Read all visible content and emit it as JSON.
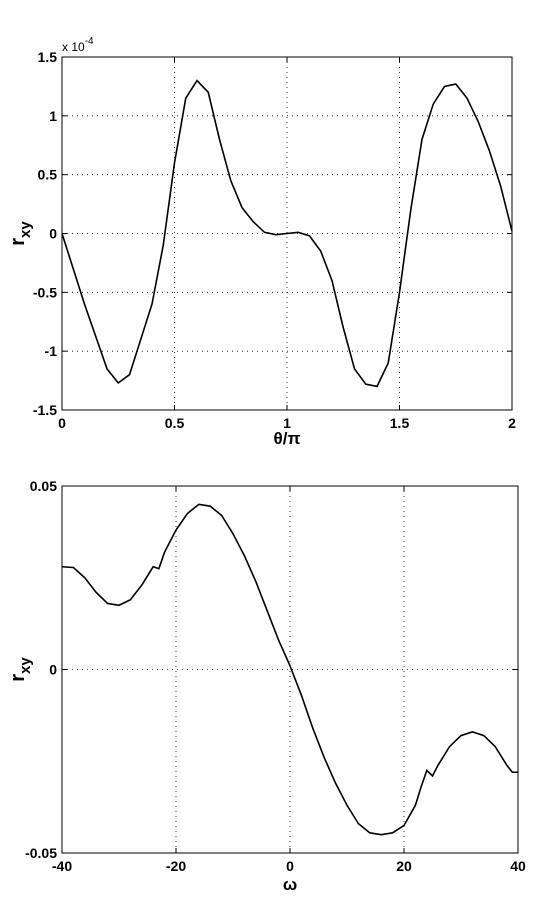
{
  "chart_data": [
    {
      "type": "line",
      "y_multiplier": "x 10",
      "y_multiplier_exp": "-4",
      "y_label": "r",
      "y_label_sub": "xy",
      "x_label": "θ/π",
      "x": [
        0,
        0.1,
        0.2,
        0.25,
        0.3,
        0.4,
        0.45,
        0.5,
        0.55,
        0.6,
        0.65,
        0.7,
        0.75,
        0.8,
        0.85,
        0.9,
        0.95,
        1.0,
        1.05,
        1.1,
        1.15,
        1.2,
        1.25,
        1.3,
        1.35,
        1.4,
        1.45,
        1.5,
        1.55,
        1.6,
        1.65,
        1.7,
        1.75,
        1.8,
        1.85,
        1.9,
        1.95,
        2.0
      ],
      "values": [
        0,
        -0.6,
        -1.15,
        -1.27,
        -1.2,
        -0.6,
        -0.1,
        0.6,
        1.15,
        1.3,
        1.2,
        0.8,
        0.45,
        0.22,
        0.1,
        0.01,
        -0.01,
        0,
        0.01,
        -0.02,
        -0.15,
        -0.4,
        -0.8,
        -1.15,
        -1.28,
        -1.3,
        -1.1,
        -0.5,
        0.2,
        0.8,
        1.1,
        1.25,
        1.27,
        1.15,
        0.95,
        0.7,
        0.4,
        0.02
      ],
      "color": "#000000",
      "xlim": [
        0,
        2
      ],
      "ylim": [
        -1.5,
        1.5
      ],
      "xticks": [
        0,
        0.5,
        1,
        1.5,
        2
      ],
      "yticks": [
        -1.5,
        -1,
        -0.5,
        0,
        0.5,
        1,
        1.5
      ],
      "grid": true
    },
    {
      "type": "line",
      "y_label": "r",
      "y_label_sub": "xy",
      "x_label": "ω",
      "x": [
        -40,
        -38,
        -36,
        -34,
        -32,
        -30,
        -28,
        -26,
        -24,
        -23,
        -22,
        -20,
        -18,
        -16,
        -14,
        -12,
        -10,
        -8,
        -6,
        -4,
        -2,
        0,
        2,
        4,
        6,
        8,
        10,
        12,
        14,
        16,
        18,
        20,
        22,
        23,
        24,
        25,
        26,
        28,
        30,
        32,
        34,
        36,
        38,
        39,
        40
      ],
      "values": [
        0.028,
        0.0278,
        0.025,
        0.021,
        0.018,
        0.0175,
        0.019,
        0.023,
        0.028,
        0.0275,
        0.032,
        0.038,
        0.0425,
        0.045,
        0.0445,
        0.042,
        0.037,
        0.031,
        0.024,
        0.016,
        0.008,
        0.001,
        -0.007,
        -0.016,
        -0.024,
        -0.031,
        -0.037,
        -0.042,
        -0.0445,
        -0.045,
        -0.0445,
        -0.0425,
        -0.037,
        -0.032,
        -0.0275,
        -0.029,
        -0.026,
        -0.021,
        -0.018,
        -0.017,
        -0.018,
        -0.021,
        -0.026,
        -0.028,
        -0.028
      ],
      "color": "#000000",
      "xlim": [
        -40,
        40
      ],
      "ylim": [
        -0.05,
        0.05
      ],
      "xticks": [
        -40,
        -20,
        0,
        20,
        40
      ],
      "yticks": [
        -0.05,
        0,
        0.05
      ],
      "grid": true
    }
  ]
}
